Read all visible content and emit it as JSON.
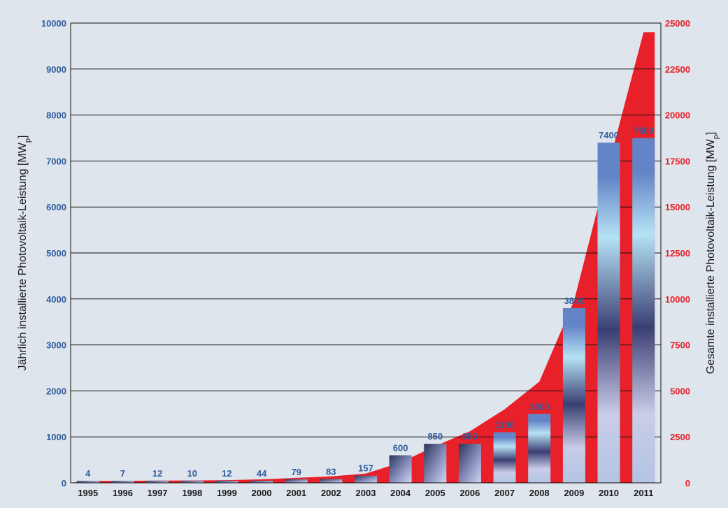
{
  "chart_data": {
    "type": "bar",
    "categories": [
      "1995",
      "1996",
      "1997",
      "1998",
      "1999",
      "2000",
      "2001",
      "2002",
      "2003",
      "2004",
      "2005",
      "2006",
      "2007",
      "2008",
      "2009",
      "2010",
      "2011"
    ],
    "series": [
      {
        "values": [
          4,
          7,
          12,
          10,
          12,
          44,
          79,
          83,
          157,
          600,
          850,
          850,
          1100,
          1500,
          3800,
          7400,
          7500
        ],
        "value_labels": [
          "4",
          "7",
          "12",
          "10",
          "12",
          "44",
          "79",
          "83",
          "157",
          "600",
          "850",
          "850",
          "1100",
          "1500",
          "3800",
          "7400",
          "7500"
        ],
        "axis": "left",
        "render": "bar"
      },
      {
        "values": [
          100,
          110,
          120,
          130,
          150,
          190,
          270,
          350,
          500,
          1100,
          2000,
          2800,
          4000,
          5500,
          9900,
          17300,
          24500
        ],
        "axis": "right",
        "render": "area",
        "color": "#e8202a"
      }
    ],
    "ylabel": "Jährlich installierte Photovoltaik-Leistung [MW",
    "ylabel_sub": "p",
    "ylabel_end": "]",
    "y2label": "Gesamte installierte Photovoltaik-Leistung [MW",
    "y2label_sub": "p",
    "y2label_end": "]",
    "ylim": [
      0,
      10000
    ],
    "y2lim": [
      0,
      25000
    ],
    "yticks": [
      "0",
      "1000",
      "2000",
      "3000",
      "4000",
      "5000",
      "6000",
      "7000",
      "8000",
      "9000",
      "10000"
    ],
    "y2ticks": [
      "0",
      "2500",
      "5000",
      "7500",
      "10000",
      "12500",
      "15000",
      "17500",
      "20000",
      "22500",
      "25000"
    ],
    "grid": true,
    "colors": {
      "left_axis": "#2f5d9e",
      "right_axis": "#e8202a",
      "background": "#dfe5ec"
    }
  }
}
